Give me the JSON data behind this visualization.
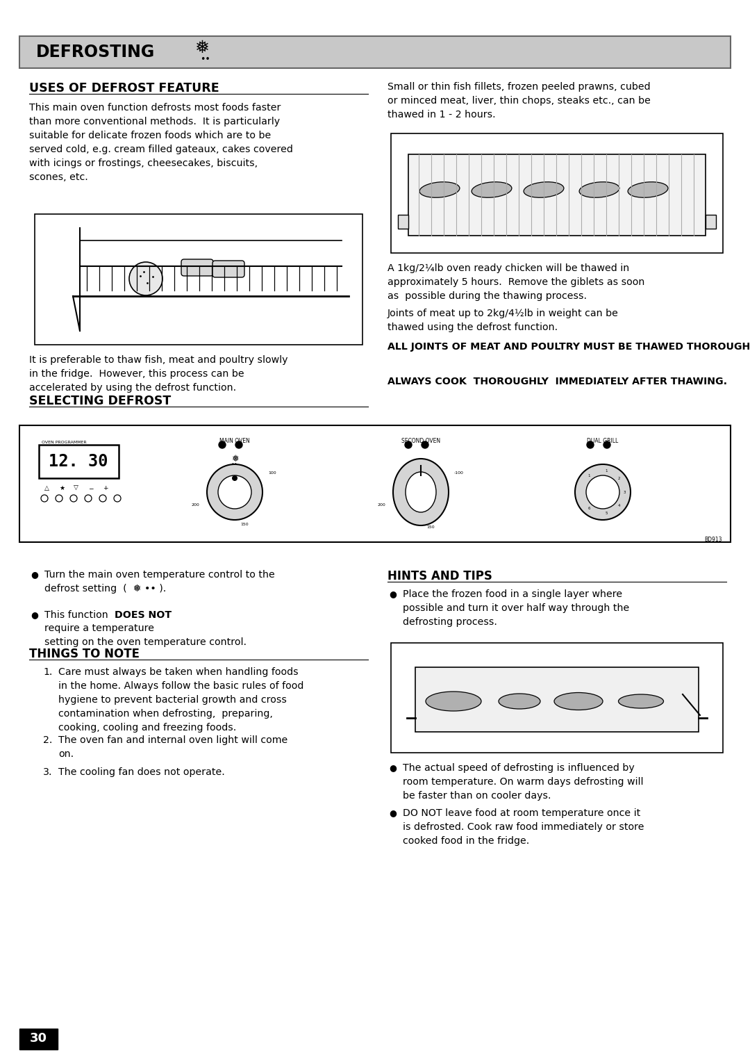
{
  "title_text": "DEFROSTING",
  "title_bg": "#c8c8c8",
  "page_bg": "#ffffff",
  "page_number": "30",
  "section1_heading": "USES OF DEFROST FEATURE",
  "section2_heading": "SELECTING DEFROST",
  "things_heading": "THINGS TO NOTE",
  "hints_heading": "HINTS AND TIPS",
  "section_right_bold1": "ALL JOINTS OF MEAT AND POULTRY MUST BE THAWED THOROUGHLY BEFORE COOKING.",
  "section_right_bold2": "ALWAYS COOK  THOROUGHLY  IMMEDIATELY AFTER THAWING."
}
